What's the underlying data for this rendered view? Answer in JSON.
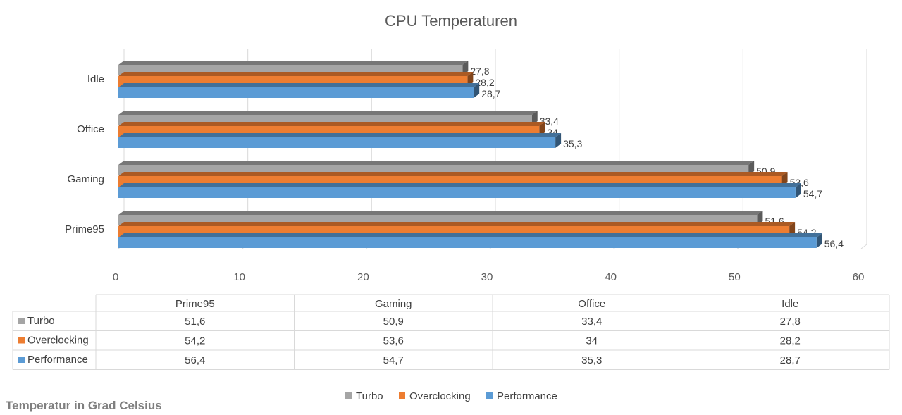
{
  "chart_data": {
    "type": "bar",
    "orientation": "horizontal",
    "title": "CPU Temperaturen",
    "categories": [
      "Prime95",
      "Gaming",
      "Office",
      "Idle"
    ],
    "series": [
      {
        "name": "Turbo",
        "color": "#a5a5a5",
        "values": [
          51.6,
          50.9,
          33.4,
          27.8
        ]
      },
      {
        "name": "Overclocking",
        "color": "#ed7d31",
        "values": [
          54.2,
          53.6,
          34,
          28.2
        ]
      },
      {
        "name": "Performance",
        "color": "#5b9bd5",
        "values": [
          56.4,
          54.7,
          35.3,
          28.7
        ]
      }
    ],
    "value_labels": {
      "Turbo": [
        "51,6",
        "50,9",
        "33,4",
        "27,8"
      ],
      "Overclocking": [
        "54,2",
        "53,6",
        "34",
        "28,2"
      ],
      "Performance": [
        "56,4",
        "54,7",
        "35,3",
        "28,7"
      ]
    },
    "xlim": [
      0,
      60
    ],
    "x_ticks": [
      "0",
      "10",
      "20",
      "30",
      "40",
      "50",
      "60"
    ],
    "grid": true,
    "legend_position": "bottom",
    "data_table": true
  },
  "footnote": "Temperatur in Grad Celsius"
}
